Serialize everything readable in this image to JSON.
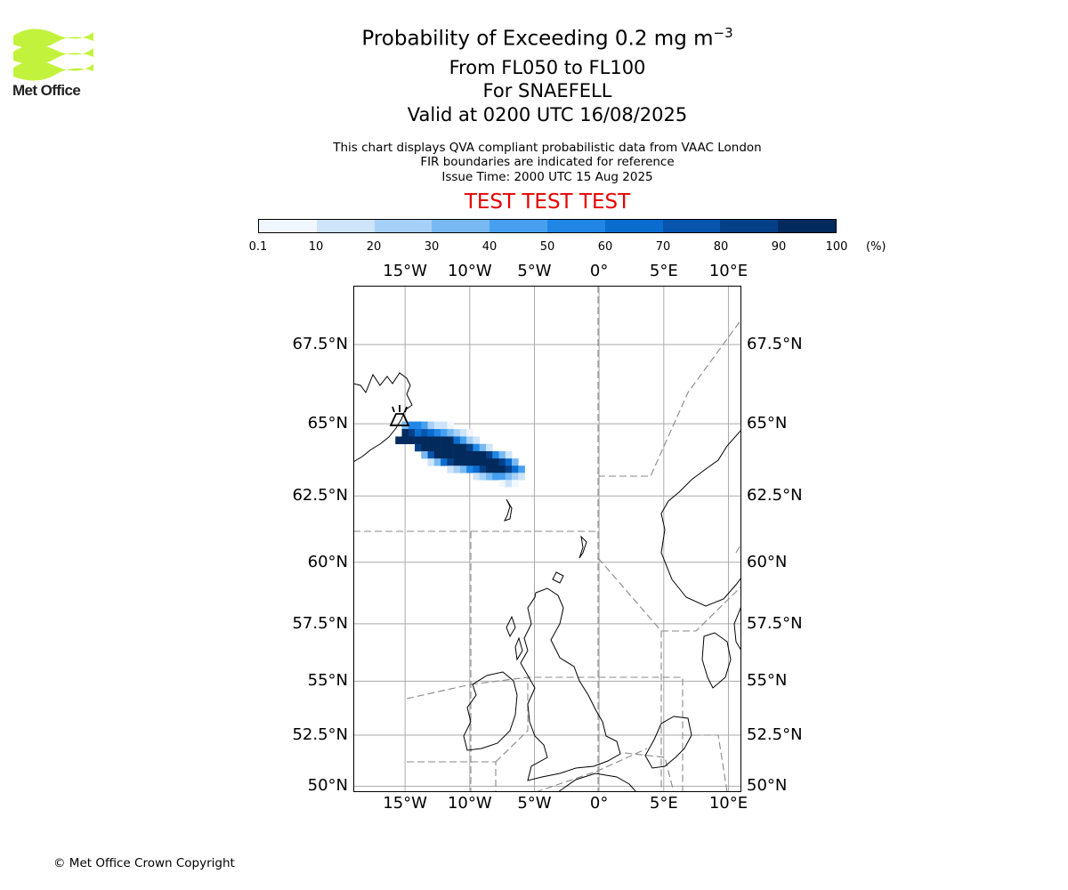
{
  "logo": {
    "text": "Met Office",
    "icon": "met-office-logo-icon",
    "color": "#c3f23d"
  },
  "title": {
    "line1_prefix": "Probability of Exceeding 0.2 mg m",
    "line1_sup": "−3",
    "line2": "From FL050 to FL100",
    "line3": "For SNAEFELL",
    "line4": "Valid at 0200 UTC 16/08/2025"
  },
  "subtitle": {
    "line1": "This chart displays QVA compliant probabilistic data from VAAC London",
    "line2": "FIR boundaries are indicated for reference",
    "line3": "Issue Time: 2000 UTC 15 Aug 2025"
  },
  "test_banner": "TEST TEST TEST",
  "colorbar": {
    "ticks": [
      "0.1",
      "10",
      "20",
      "30",
      "40",
      "50",
      "60",
      "70",
      "80",
      "90",
      "100"
    ],
    "colors": [
      "#f0f7ff",
      "#cde4f9",
      "#a6d0f7",
      "#78b9f3",
      "#46a0ef",
      "#1f86e6",
      "#0b6ccf",
      "#0755ad",
      "#044088",
      "#022a5c"
    ],
    "unit": "(%)"
  },
  "map": {
    "lon_labels": [
      "15°W",
      "10°W",
      "5°W",
      "0°",
      "5°E",
      "10°E"
    ],
    "lon_values": [
      -15,
      -10,
      -5,
      0,
      5,
      10
    ],
    "lat_labels": [
      "67.5°N",
      "65°N",
      "62.5°N",
      "60°N",
      "57.5°N",
      "55°N",
      "52.5°N",
      "50°N"
    ],
    "lat_values": [
      67.5,
      65,
      62.5,
      60,
      57.5,
      55,
      52.5,
      50
    ],
    "extent": {
      "lon_min": -19,
      "lon_max": 11,
      "lat_min": 49.7,
      "lat_max": 69.2
    },
    "volcano": {
      "name": "SNAEFELL",
      "lat": 64.8,
      "lon": -15.6,
      "icon": "volcano-icon"
    },
    "plume": [
      {
        "lat": 64.95,
        "lon": -15.0,
        "p": 3
      },
      {
        "lat": 64.95,
        "lon": -14.5,
        "p": 5
      },
      {
        "lat": 64.95,
        "lon": -14.0,
        "p": 5
      },
      {
        "lat": 64.95,
        "lon": -13.5,
        "p": 4
      },
      {
        "lat": 64.95,
        "lon": -13.0,
        "p": 2
      },
      {
        "lat": 64.95,
        "lon": -12.5,
        "p": 1
      },
      {
        "lat": 64.95,
        "lon": -12.0,
        "p": 1
      },
      {
        "lat": 64.95,
        "lon": -11.5,
        "p": 0
      },
      {
        "lat": 64.7,
        "lon": -15.0,
        "p": 9
      },
      {
        "lat": 64.7,
        "lon": -14.5,
        "p": 8
      },
      {
        "lat": 64.7,
        "lon": -14.0,
        "p": 6
      },
      {
        "lat": 64.7,
        "lon": -13.5,
        "p": 7
      },
      {
        "lat": 64.7,
        "lon": -13.0,
        "p": 6
      },
      {
        "lat": 64.7,
        "lon": -12.5,
        "p": 5
      },
      {
        "lat": 64.7,
        "lon": -12.0,
        "p": 4
      },
      {
        "lat": 64.7,
        "lon": -11.5,
        "p": 3
      },
      {
        "lat": 64.7,
        "lon": -11.0,
        "p": 2
      },
      {
        "lat": 64.7,
        "lon": -10.5,
        "p": 1
      },
      {
        "lat": 64.7,
        "lon": -10.0,
        "p": 0
      },
      {
        "lat": 64.45,
        "lon": -15.5,
        "p": 9
      },
      {
        "lat": 64.45,
        "lon": -15.0,
        "p": 9
      },
      {
        "lat": 64.45,
        "lon": -14.5,
        "p": 9
      },
      {
        "lat": 64.45,
        "lon": -14.0,
        "p": 9
      },
      {
        "lat": 64.45,
        "lon": -13.5,
        "p": 9
      },
      {
        "lat": 64.45,
        "lon": -13.0,
        "p": 9
      },
      {
        "lat": 64.45,
        "lon": -12.5,
        "p": 9
      },
      {
        "lat": 64.45,
        "lon": -12.0,
        "p": 9
      },
      {
        "lat": 64.45,
        "lon": -11.5,
        "p": 9
      },
      {
        "lat": 64.45,
        "lon": -11.0,
        "p": 6
      },
      {
        "lat": 64.45,
        "lon": -10.5,
        "p": 4
      },
      {
        "lat": 64.45,
        "lon": -10.0,
        "p": 2
      },
      {
        "lat": 64.45,
        "lon": -9.5,
        "p": 1
      },
      {
        "lat": 64.2,
        "lon": -14.0,
        "p": 8
      },
      {
        "lat": 64.2,
        "lon": -13.5,
        "p": 9
      },
      {
        "lat": 64.2,
        "lon": -13.0,
        "p": 9
      },
      {
        "lat": 64.2,
        "lon": -12.5,
        "p": 9
      },
      {
        "lat": 64.2,
        "lon": -12.0,
        "p": 9
      },
      {
        "lat": 64.2,
        "lon": -11.5,
        "p": 9
      },
      {
        "lat": 64.2,
        "lon": -11.0,
        "p": 9
      },
      {
        "lat": 64.2,
        "lon": -10.5,
        "p": 9
      },
      {
        "lat": 64.2,
        "lon": -10.0,
        "p": 8
      },
      {
        "lat": 64.2,
        "lon": -9.5,
        "p": 5
      },
      {
        "lat": 64.2,
        "lon": -9.0,
        "p": 3
      },
      {
        "lat": 64.2,
        "lon": -8.5,
        "p": 1
      },
      {
        "lat": 63.95,
        "lon": -13.5,
        "p": 3
      },
      {
        "lat": 63.95,
        "lon": -13.0,
        "p": 7
      },
      {
        "lat": 63.95,
        "lon": -12.5,
        "p": 9
      },
      {
        "lat": 63.95,
        "lon": -12.0,
        "p": 9
      },
      {
        "lat": 63.95,
        "lon": -11.5,
        "p": 9
      },
      {
        "lat": 63.95,
        "lon": -11.0,
        "p": 9
      },
      {
        "lat": 63.95,
        "lon": -10.5,
        "p": 9
      },
      {
        "lat": 63.95,
        "lon": -10.0,
        "p": 9
      },
      {
        "lat": 63.95,
        "lon": -9.5,
        "p": 9
      },
      {
        "lat": 63.95,
        "lon": -9.0,
        "p": 9
      },
      {
        "lat": 63.95,
        "lon": -8.5,
        "p": 8
      },
      {
        "lat": 63.95,
        "lon": -8.0,
        "p": 5
      },
      {
        "lat": 63.95,
        "lon": -7.5,
        "p": 3
      },
      {
        "lat": 63.95,
        "lon": -7.0,
        "p": 1
      },
      {
        "lat": 63.7,
        "lon": -13.0,
        "p": 1
      },
      {
        "lat": 63.7,
        "lon": -12.5,
        "p": 3
      },
      {
        "lat": 63.7,
        "lon": -12.0,
        "p": 6
      },
      {
        "lat": 63.7,
        "lon": -11.5,
        "p": 8
      },
      {
        "lat": 63.7,
        "lon": -11.0,
        "p": 9
      },
      {
        "lat": 63.7,
        "lon": -10.5,
        "p": 9
      },
      {
        "lat": 63.7,
        "lon": -10.0,
        "p": 9
      },
      {
        "lat": 63.7,
        "lon": -9.5,
        "p": 9
      },
      {
        "lat": 63.7,
        "lon": -9.0,
        "p": 9
      },
      {
        "lat": 63.7,
        "lon": -8.5,
        "p": 9
      },
      {
        "lat": 63.7,
        "lon": -8.0,
        "p": 9
      },
      {
        "lat": 63.7,
        "lon": -7.5,
        "p": 8
      },
      {
        "lat": 63.7,
        "lon": -7.0,
        "p": 6
      },
      {
        "lat": 63.7,
        "lon": -6.5,
        "p": 3
      },
      {
        "lat": 63.45,
        "lon": -11.5,
        "p": 1
      },
      {
        "lat": 63.45,
        "lon": -11.0,
        "p": 2
      },
      {
        "lat": 63.45,
        "lon": -10.5,
        "p": 3
      },
      {
        "lat": 63.45,
        "lon": -10.0,
        "p": 5
      },
      {
        "lat": 63.45,
        "lon": -9.5,
        "p": 6
      },
      {
        "lat": 63.45,
        "lon": -9.0,
        "p": 8
      },
      {
        "lat": 63.45,
        "lon": -8.5,
        "p": 9
      },
      {
        "lat": 63.45,
        "lon": -8.0,
        "p": 9
      },
      {
        "lat": 63.45,
        "lon": -7.5,
        "p": 9
      },
      {
        "lat": 63.45,
        "lon": -7.0,
        "p": 8
      },
      {
        "lat": 63.45,
        "lon": -6.5,
        "p": 6
      },
      {
        "lat": 63.45,
        "lon": -6.0,
        "p": 4
      },
      {
        "lat": 63.2,
        "lon": -9.5,
        "p": 1
      },
      {
        "lat": 63.2,
        "lon": -9.0,
        "p": 2
      },
      {
        "lat": 63.2,
        "lon": -8.5,
        "p": 3
      },
      {
        "lat": 63.2,
        "lon": -8.0,
        "p": 4
      },
      {
        "lat": 63.2,
        "lon": -7.5,
        "p": 4
      },
      {
        "lat": 63.2,
        "lon": -7.0,
        "p": 3
      },
      {
        "lat": 63.2,
        "lon": -6.5,
        "p": 2
      },
      {
        "lat": 63.2,
        "lon": -6.0,
        "p": 1
      },
      {
        "lat": 62.95,
        "lon": -7.5,
        "p": 0
      },
      {
        "lat": 62.95,
        "lon": -7.0,
        "p": 1
      },
      {
        "lat": 62.95,
        "lon": -6.5,
        "p": 0
      }
    ]
  },
  "copyright": "© Met Office Crown Copyright"
}
